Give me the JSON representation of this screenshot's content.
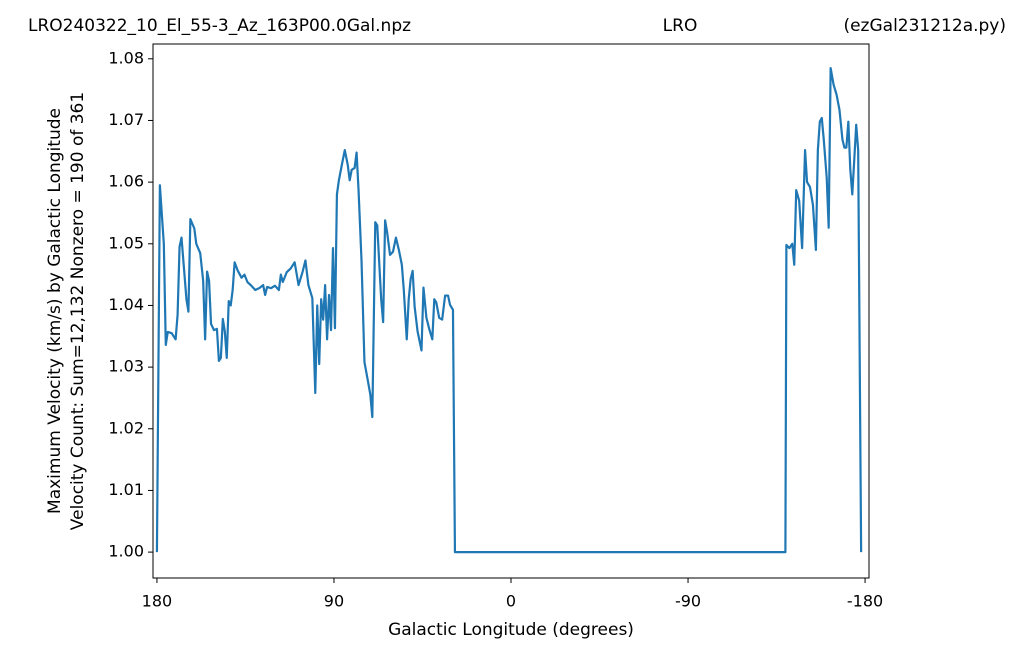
{
  "chart_data": {
    "type": "line",
    "title": [
      "LRO240322_10_El_55-3_Az_163P00.0Gal.npz",
      "LRO",
      "(ezGal231212a.py)"
    ],
    "y_label": [
      "Maximum Velocity (km/s) by Galactic Longitude",
      "Velocity Count: Sum=12,132 Nonzero = 190 of 361"
    ],
    "x_label": "Galactic Longitude (degrees)",
    "color": "#1f77b4",
    "xlim": [
      182,
      -182
    ],
    "ylim": [
      0.9958,
      1.0824
    ],
    "xticks": [
      180,
      90,
      0,
      -90,
      -180
    ],
    "yticks": [
      {
        "value": 1,
        "label": "1.00"
      },
      1.01,
      1.02,
      1.03,
      1.04,
      1.05,
      1.06,
      1.07,
      1.08
    ],
    "x": [
      180,
      178.5,
      176.5,
      175.5,
      174.5,
      172.5,
      170.5,
      169.5,
      168.5,
      167.5,
      166.5,
      165,
      164,
      163,
      161,
      160,
      158,
      156.5,
      155.5,
      154.5,
      153.5,
      152.5,
      151,
      149.5,
      148.5,
      147.5,
      146.5,
      145.5,
      144.5,
      143.5,
      142.5,
      141.5,
      140.5,
      139,
      137,
      135.5,
      134,
      132,
      130,
      128,
      126,
      125,
      124,
      122,
      120,
      118,
      117,
      116,
      114,
      112,
      110,
      108,
      106,
      104.5,
      103,
      101,
      99.5,
      98.5,
      97.5,
      96.5,
      95.5,
      94.5,
      93.5,
      92.5,
      91.5,
      90.5,
      89.5,
      88.5,
      87.5,
      86,
      84.5,
      83,
      82,
      81,
      79.5,
      78.5,
      77.5,
      76,
      74.5,
      73,
      71.5,
      70.5,
      69,
      68,
      67,
      66,
      65,
      64,
      63,
      61.5,
      60,
      58.5,
      57,
      55.5,
      54.5,
      53,
      52,
      51,
      50,
      49,
      47.5,
      45.5,
      44.5,
      43,
      41.5,
      40,
      39,
      38,
      36.5,
      35,
      33.5,
      32,
      31,
      29.5,
      28.5,
      -139.5,
      -140,
      -141.5,
      -143,
      -144,
      -145,
      -146.5,
      -148,
      -149.5,
      -150.5,
      -152,
      -153.5,
      -155,
      -156,
      -157,
      -158,
      -159,
      -160.5,
      -161.5,
      -162.5,
      -164,
      -165.5,
      -167,
      -168.5,
      -169.5,
      -170.5,
      -171.5,
      -172.5,
      -173.5,
      -174.5,
      -175.5,
      -176.5,
      -178
    ],
    "values": [
      1.0,
      1.0595,
      1.05,
      1.0336,
      1.0357,
      1.0355,
      1.0345,
      1.0385,
      1.0495,
      1.051,
      1.047,
      1.041,
      1.039,
      1.054,
      1.0525,
      1.05,
      1.0485,
      1.044,
      1.0345,
      1.0455,
      1.044,
      1.037,
      1.036,
      1.0362,
      1.031,
      1.0315,
      1.0378,
      1.0358,
      1.0315,
      1.0407,
      1.04,
      1.0425,
      1.047,
      1.0457,
      1.0445,
      1.045,
      1.0438,
      1.0432,
      1.0425,
      1.0428,
      1.0433,
      1.0417,
      1.043,
      1.0428,
      1.0432,
      1.0425,
      1.045,
      1.0438,
      1.0454,
      1.046,
      1.047,
      1.0433,
      1.0454,
      1.0473,
      1.0433,
      1.0412,
      1.0258,
      1.04,
      1.0305,
      1.041,
      1.0377,
      1.0433,
      1.0345,
      1.0417,
      1.036,
      1.0493,
      1.0363,
      1.058,
      1.0603,
      1.0628,
      1.0652,
      1.0628,
      1.0603,
      1.062,
      1.0623,
      1.0648,
      1.0587,
      1.0473,
      1.0308,
      1.0282,
      1.0255,
      1.0219,
      1.0535,
      1.053,
      1.047,
      1.041,
      1.0373,
      1.0538,
      1.0519,
      1.0482,
      1.0487,
      1.051,
      1.049,
      1.0466,
      1.0425,
      1.0345,
      1.041,
      1.0443,
      1.0456,
      1.0398,
      1.0358,
      1.0327,
      1.0429,
      1.038,
      1.0361,
      1.0345,
      1.041,
      1.0405,
      1.038,
      1.0377,
      1.0416,
      1.0416,
      1.0401,
      1.0393,
      1.0,
      1.0,
      1.0498,
      1.0493,
      1.05,
      1.0466,
      1.0587,
      1.057,
      1.0493,
      1.0652,
      1.06,
      1.0592,
      1.0563,
      1.049,
      1.0652,
      1.0698,
      1.0704,
      1.0669,
      1.0607,
      1.0526,
      1.0785,
      1.0758,
      1.0742,
      1.0717,
      1.0669,
      1.0656,
      1.0656,
      1.0698,
      1.062,
      1.058,
      1.0636,
      1.0693,
      1.0652,
      1.0
    ]
  }
}
